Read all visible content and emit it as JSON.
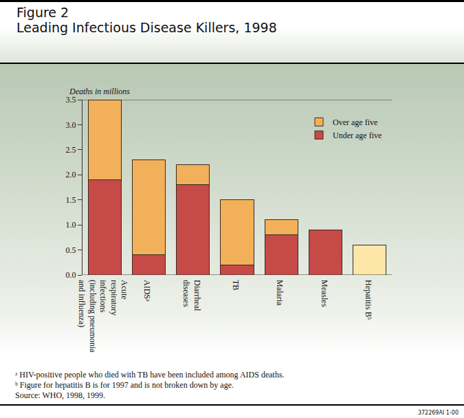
{
  "chart_data": {
    "type": "bar",
    "title": "Figure 2\nLeading Infectious Disease Killers, 1998",
    "ylabel": "Deaths in millions",
    "categories": [
      "Acute\nrespiratory\ninfections\n(including pneumonia\nand influenza)",
      "AIDSᵃ",
      "Diarrheal\ndiseases",
      "TB",
      "Malaria",
      "Measles",
      "Hepatitis Bᵇ"
    ],
    "series": [
      {
        "name": "Under age five",
        "color": "#c64a47",
        "values": [
          1.9,
          0.4,
          1.8,
          0.2,
          0.8,
          0.9,
          null
        ]
      },
      {
        "name": "Over age five",
        "color": "#f3b05a",
        "values": [
          1.6,
          1.9,
          0.4,
          1.3,
          0.3,
          0,
          null
        ]
      },
      {
        "color": "#fde6a8",
        "values": [
          null,
          null,
          null,
          null,
          null,
          null,
          0.6
        ]
      }
    ],
    "stacked": true,
    "legend": "top right",
    "grid": false,
    "ylim": [
      0,
      3.5
    ],
    "yticks": [
      {
        "value": 0,
        "label": "0.0"
      },
      0.5,
      {
        "value": 1,
        "label": "1.0"
      },
      1.5,
      {
        "value": 2,
        "label": "2.0"
      },
      2.5,
      {
        "value": 3,
        "label": "3.0"
      },
      3.5
    ],
    "annotations": [
      "ᵃ HIV-positive people who died with TB have been included among AIDS deaths.",
      "ᵇ Figure for hepatitis B is for 1997 and is not broken down by age.",
      "Source: WHO, 1998, 1999.",
      "372269AI 1-00"
    ]
  }
}
